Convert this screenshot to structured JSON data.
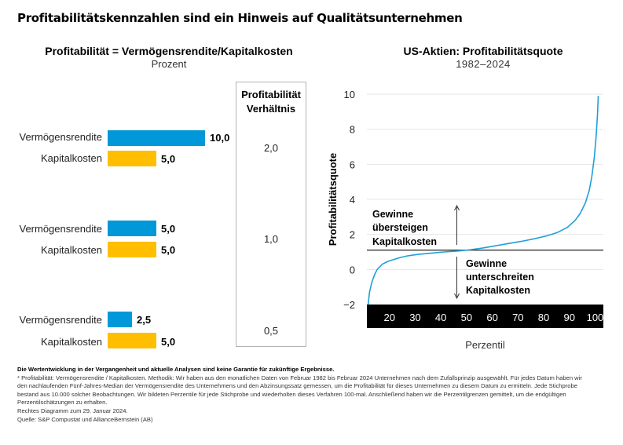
{
  "main_title": "Profitabilitätskennzahlen sind ein Hinweis auf Qualitätsunternehmen",
  "colors": {
    "asset_return": "#0098d8",
    "capital_cost": "#ffbe00",
    "curve": "#1fa0d8",
    "axis_band": "#000000"
  },
  "chart_data": [
    {
      "type": "bar",
      "title": "Profitabilität = Vermögensrendite/Kapitalkosten",
      "subtitle": "Prozent",
      "ratio_header": "Profitabilität Verhältnis",
      "ratio_header_lines": [
        "Profitabilität",
        "Verhältnis"
      ],
      "xlim": [
        0,
        10
      ],
      "groups": [
        {
          "bars": [
            {
              "label": "Vermögensrendite",
              "value": 10.0,
              "display": "10,0"
            },
            {
              "label": "Kapitalkosten",
              "value": 5.0,
              "display": "5,0"
            }
          ],
          "ratio": "2,0"
        },
        {
          "bars": [
            {
              "label": "Vermögensrendite",
              "value": 5.0,
              "display": "5,0"
            },
            {
              "label": "Kapitalkosten",
              "value": 5.0,
              "display": "5,0"
            }
          ],
          "ratio": "1,0"
        },
        {
          "bars": [
            {
              "label": "Vermögensrendite",
              "value": 2.5,
              "display": "2,5"
            },
            {
              "label": "Kapitalkosten",
              "value": 5.0,
              "display": "5,0"
            }
          ],
          "ratio": "0,5"
        }
      ]
    },
    {
      "type": "line",
      "title": "US-Aktien: Profitabilitätsquote",
      "subtitle": "1982–2024",
      "xlabel": "Perzentil",
      "ylabel": "Profitabilitätsquote",
      "ylim": [
        -2,
        10
      ],
      "xlim": [
        10,
        102
      ],
      "yticks": [
        -2,
        0,
        2,
        4,
        6,
        8,
        10
      ],
      "ytick_labels": [
        "−2",
        "0",
        "2",
        "4",
        "6",
        "8",
        "10"
      ],
      "xticks": [
        20,
        30,
        40,
        50,
        60,
        70,
        80,
        90,
        100
      ],
      "xtick_labels": [
        "20",
        "30",
        "40",
        "50",
        "60",
        "70",
        "80",
        "90",
        "100"
      ],
      "reference_line": 1.1,
      "grid": true,
      "series": [
        {
          "name": "Profitabilitätsquote",
          "x": [
            10.5,
            11,
            12,
            13,
            14,
            16,
            18,
            20,
            23,
            26,
            30,
            35,
            40,
            45,
            50,
            55,
            60,
            65,
            70,
            75,
            80,
            84,
            88,
            91,
            93,
            95,
            96.5,
            97.5,
            98.5,
            99.2,
            99.7,
            100
          ],
          "y": [
            -2.0,
            -1.3,
            -0.7,
            -0.3,
            0.0,
            0.3,
            0.45,
            0.55,
            0.68,
            0.78,
            0.86,
            0.93,
            1.0,
            1.05,
            1.12,
            1.22,
            1.35,
            1.48,
            1.6,
            1.75,
            1.92,
            2.1,
            2.4,
            2.8,
            3.2,
            3.8,
            4.5,
            5.3,
            6.4,
            7.6,
            8.8,
            9.9
          ]
        }
      ],
      "annotations": [
        {
          "text_lines": [
            "Gewinne",
            "übersteigen",
            "Kapitalkosten"
          ],
          "direction": "up"
        },
        {
          "text_lines": [
            "Gewinne",
            "unterschreiten",
            "Kapitalkosten"
          ],
          "direction": "down"
        }
      ]
    }
  ],
  "footer": {
    "disclaimer": "Die Wertentwicklung in der Vergangenheit und aktuelle Analysen sind keine Garantie für zukünftige Ergebnisse.",
    "lines": [
      "* Profitabilität: Vermögensrendite / Kapitalkosten. Methodik: Wir haben aus den monatlichen Daten von Februar 1982 bis Februar 2024 Unternehmen nach dem Zufallsprinzip ausgewählt. Für jedes Datum haben wir",
      "den nachlaufenden Fünf-Jahres-Median der Vermögensrendite des Unternehmens und den Abzinsungssatz gemessen, um die Profitabilität für dieses Unternehmen zu diesem Datum zu ermitteln. Jede Stichprobe",
      "bestand aus 10.000 solcher Beobachtungen. Wir bildeten Perzentile für jede Stichprobe und wiederholten dieses Verfahren 100-mal. Anschließend haben wir die Perzentilgrenzen gemittelt, um die endgültigen",
      "Perzentilschätzungen zu erhalten.",
      "Rechtes Diagramm zum 29. Januar 2024.",
      "Quelle: S&P Compustat und AllianceBernstein (AB)"
    ]
  }
}
